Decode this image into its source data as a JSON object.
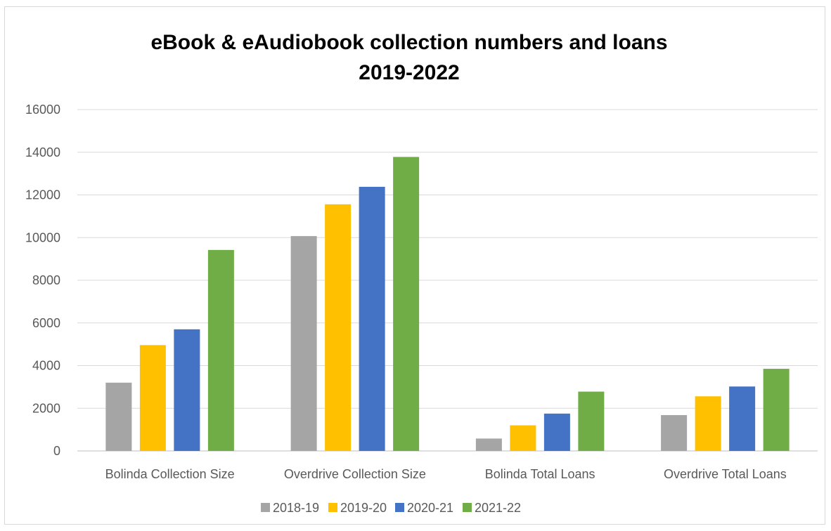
{
  "chart_data": {
    "type": "bar",
    "title_lines": [
      "eBook & eAudiobook collection numbers and loans",
      "2019-2022"
    ],
    "categories": [
      "Bolinda Collection Size",
      "Overdrive Collection Size",
      "Bolinda Total Loans",
      "Overdrive Total Loans"
    ],
    "series": [
      {
        "name": "2018-19",
        "color": "#a5a5a5",
        "values": [
          3200,
          10070,
          580,
          1680
        ]
      },
      {
        "name": "2019-20",
        "color": "#ffc000",
        "values": [
          4960,
          11560,
          1200,
          2560
        ]
      },
      {
        "name": "2020-21",
        "color": "#4472c4",
        "values": [
          5700,
          12380,
          1750,
          3020
        ]
      },
      {
        "name": "2021-22",
        "color": "#70ad47",
        "values": [
          9420,
          13780,
          2780,
          3850
        ]
      }
    ],
    "ylim": [
      0,
      16000
    ],
    "yticks": [
      "0",
      "2000",
      "4000",
      "6000",
      "8000",
      "10000",
      "12000",
      "14000",
      "16000"
    ],
    "grid": true,
    "legend_position": "bottom"
  }
}
